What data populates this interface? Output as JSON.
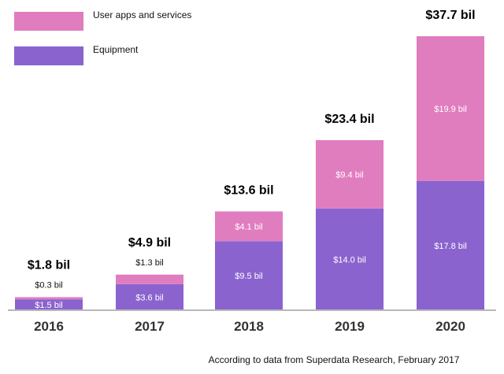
{
  "chart_data": {
    "type": "bar",
    "stacked": true,
    "categories": [
      "2016",
      "2017",
      "2018",
      "2019",
      "2020"
    ],
    "series": [
      {
        "name": "Equipment",
        "color": "#8a63cf",
        "values": [
          1.5,
          3.6,
          9.5,
          14.0,
          17.8
        ],
        "labels": [
          "$1.5 bil",
          "$3.6 bil",
          "$9.5 bil",
          "$14.0 bil",
          "$17.8 bil"
        ]
      },
      {
        "name": "User apps and services",
        "color": "#e07dbf",
        "values": [
          0.3,
          1.3,
          4.1,
          9.4,
          19.9
        ],
        "labels": [
          "$0.3 bil",
          "$1.3 bil",
          "$4.1 bil",
          "$9.4 bil",
          "$19.9 bil"
        ]
      }
    ],
    "totals": [
      1.8,
      4.9,
      13.6,
      23.4,
      37.7
    ],
    "total_labels": [
      "$1.8 bil",
      "$4.9 bil",
      "$13.6 bil",
      "$23.4 bil",
      "$37.7 bil"
    ],
    "ylim": [
      0,
      37.7
    ],
    "grid": false,
    "legend_position": "top-left"
  },
  "source_note": "According to data from Superdata Research, February 2017"
}
